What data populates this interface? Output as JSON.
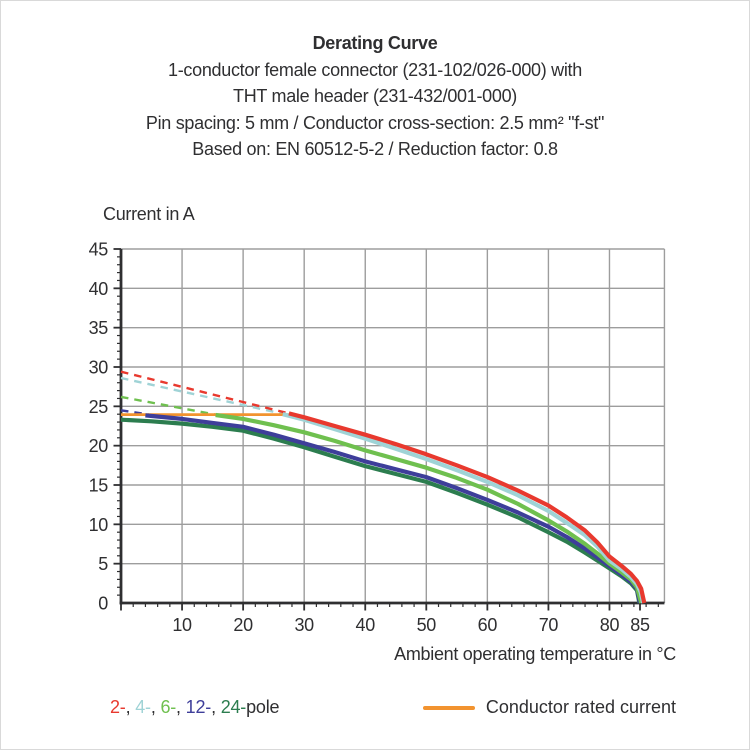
{
  "title": {
    "line1": "Derating Curve",
    "line2": "1-conductor female connector (231-102/026-000) with",
    "line3": "THT male header (231-432/001-000)",
    "line4": "Pin spacing: 5 mm / Conductor cross-section: 2.5 mm² \"f-st\"",
    "line5": "Based on: EN 60512-5-2 / Reduction factor: 0.8"
  },
  "chart_data": {
    "type": "line",
    "title": "Derating Curve",
    "ylabel": "Current in A",
    "xlabel": "Ambient operating temperature in °C",
    "xlim": [
      0,
      89
    ],
    "ylim": [
      0,
      45
    ],
    "grid": true,
    "colors": {
      "grid": "#9d9d9d",
      "axis": "#2f2f31",
      "tick_text": "#2f2f31",
      "pole2": "#e8392e",
      "pole4": "#9fd3d6",
      "pole6": "#6fc04f",
      "pole12": "#3e3e9a",
      "pole24": "#2c7d4f",
      "rated": "#f2932f"
    },
    "x_gridlines": [
      10,
      20,
      30,
      40,
      50,
      60,
      70,
      80
    ],
    "x_major_ticks": [
      0,
      10,
      20,
      30,
      40,
      50,
      60,
      70,
      80,
      85
    ],
    "x_tick_labels": [
      "10",
      "20",
      "30",
      "40",
      "50",
      "60",
      "70",
      "80",
      "85"
    ],
    "x_tick_label_values": [
      10,
      20,
      30,
      40,
      50,
      60,
      70,
      80,
      85
    ],
    "x_minor_step": 2,
    "y_major_ticks": [
      0,
      5,
      10,
      15,
      20,
      25,
      30,
      35,
      40,
      45
    ],
    "y_tick_labels": [
      "0",
      "5",
      "10",
      "15",
      "20",
      "25",
      "30",
      "35",
      "40",
      "45"
    ],
    "y_minor_step": 1,
    "series": [
      {
        "name": "12-pole above rated current",
        "color": "#3e3e9a",
        "style": "dashed",
        "width": 2.4,
        "points": [
          [
            0,
            24.5
          ],
          [
            5,
            23.9
          ]
        ]
      },
      {
        "name": "6-pole above rated current",
        "color": "#6fc04f",
        "style": "dashed",
        "width": 2.4,
        "points": [
          [
            0,
            26.2
          ],
          [
            15.5,
            23.95
          ]
        ]
      },
      {
        "name": "4-pole above rated current",
        "color": "#9fd3d6",
        "style": "dashed",
        "width": 2.4,
        "points": [
          [
            0,
            28.6
          ],
          [
            26.5,
            24.05
          ]
        ]
      },
      {
        "name": "2-pole above rated current",
        "color": "#e8392e",
        "style": "dashed",
        "width": 2.4,
        "points": [
          [
            0,
            29.4
          ],
          [
            27.5,
            24.1
          ]
        ]
      },
      {
        "name": "Conductor rated current",
        "color": "#f2932f",
        "style": "solid",
        "width": 2.8,
        "points": [
          [
            0,
            23.95
          ],
          [
            28.5,
            23.95
          ]
        ]
      },
      {
        "name": "24-pole",
        "color": "#2c7d4f",
        "style": "solid",
        "width": 4.2,
        "points": [
          [
            0,
            23.3
          ],
          [
            5,
            23.1
          ],
          [
            10,
            22.8
          ],
          [
            15,
            22.4
          ],
          [
            20,
            21.9
          ],
          [
            25,
            20.9
          ],
          [
            30,
            19.8
          ],
          [
            35,
            18.6
          ],
          [
            40,
            17.4
          ],
          [
            45,
            16.4
          ],
          [
            50,
            15.4
          ],
          [
            55,
            14.0
          ],
          [
            60,
            12.5
          ],
          [
            65,
            10.9
          ],
          [
            70,
            9.0
          ],
          [
            73,
            7.8
          ],
          [
            76,
            6.4
          ],
          [
            78,
            5.4
          ],
          [
            80,
            4.4
          ],
          [
            82,
            3.4
          ],
          [
            83.5,
            2.5
          ],
          [
            84.5,
            1.6
          ],
          [
            84.9,
            0
          ]
        ]
      },
      {
        "name": "12-pole",
        "color": "#3e3e9a",
        "style": "solid",
        "width": 4.2,
        "points": [
          [
            4,
            23.85
          ],
          [
            10,
            23.4
          ],
          [
            15,
            22.9
          ],
          [
            20,
            22.4
          ],
          [
            25,
            21.4
          ],
          [
            30,
            20.3
          ],
          [
            35,
            19.2
          ],
          [
            40,
            18.0
          ],
          [
            45,
            17.0
          ],
          [
            50,
            16.0
          ],
          [
            55,
            14.6
          ],
          [
            60,
            13.1
          ],
          [
            65,
            11.5
          ],
          [
            70,
            9.7
          ],
          [
            73,
            8.4
          ],
          [
            76,
            6.9
          ],
          [
            78,
            5.8
          ],
          [
            80,
            4.7
          ],
          [
            82,
            3.6
          ],
          [
            83.5,
            2.7
          ],
          [
            84.5,
            1.8
          ],
          [
            85,
            0
          ]
        ]
      },
      {
        "name": "6-pole",
        "color": "#6fc04f",
        "style": "solid",
        "width": 4.2,
        "points": [
          [
            15.5,
            23.9
          ],
          [
            20,
            23.4
          ],
          [
            25,
            22.6
          ],
          [
            30,
            21.7
          ],
          [
            35,
            20.6
          ],
          [
            40,
            19.4
          ],
          [
            45,
            18.3
          ],
          [
            50,
            17.2
          ],
          [
            55,
            15.9
          ],
          [
            60,
            14.4
          ],
          [
            65,
            12.6
          ],
          [
            70,
            10.5
          ],
          [
            73,
            9.1
          ],
          [
            76,
            7.5
          ],
          [
            78,
            6.3
          ],
          [
            80,
            5.0
          ],
          [
            82,
            3.9
          ],
          [
            83.5,
            3.0
          ],
          [
            84.5,
            2.0
          ],
          [
            85.2,
            0
          ]
        ]
      },
      {
        "name": "4-pole",
        "color": "#9fd3d6",
        "style": "solid",
        "width": 4.2,
        "points": [
          [
            26.5,
            24.0
          ],
          [
            30,
            23.3
          ],
          [
            35,
            22.1
          ],
          [
            40,
            20.9
          ],
          [
            45,
            19.6
          ],
          [
            50,
            18.3
          ],
          [
            55,
            16.9
          ],
          [
            60,
            15.4
          ],
          [
            65,
            13.7
          ],
          [
            70,
            11.7
          ],
          [
            73,
            10.2
          ],
          [
            76,
            8.6
          ],
          [
            78,
            7.2
          ],
          [
            80,
            5.4
          ],
          [
            82,
            4.3
          ],
          [
            83.5,
            3.3
          ],
          [
            84.5,
            2.4
          ],
          [
            85.1,
            1.4
          ],
          [
            85.5,
            0
          ]
        ]
      },
      {
        "name": "2-pole",
        "color": "#e8392e",
        "style": "solid",
        "width": 4.2,
        "points": [
          [
            27.5,
            24.1
          ],
          [
            30,
            23.6
          ],
          [
            35,
            22.5
          ],
          [
            40,
            21.4
          ],
          [
            45,
            20.2
          ],
          [
            50,
            18.9
          ],
          [
            55,
            17.5
          ],
          [
            60,
            16.0
          ],
          [
            65,
            14.3
          ],
          [
            70,
            12.4
          ],
          [
            73,
            10.9
          ],
          [
            76,
            9.2
          ],
          [
            78,
            7.7
          ],
          [
            80,
            5.9
          ],
          [
            82,
            4.7
          ],
          [
            83.5,
            3.7
          ],
          [
            84.5,
            2.8
          ],
          [
            85.2,
            1.8
          ],
          [
            85.7,
            0
          ]
        ]
      }
    ],
    "legend_position": "bottom"
  },
  "legend": {
    "pole_entries": [
      {
        "label": "2-",
        "color": "#e8392e"
      },
      {
        "label": ", ",
        "color": "#2f2f31"
      },
      {
        "label": "4-",
        "color": "#9fd3d6"
      },
      {
        "label": ", ",
        "color": "#2f2f31"
      },
      {
        "label": "6-",
        "color": "#6fc04f"
      },
      {
        "label": ", ",
        "color": "#2f2f31"
      },
      {
        "label": "12-",
        "color": "#3e3e9a"
      },
      {
        "label": ", ",
        "color": "#2f2f31"
      },
      {
        "label": "24-",
        "color": "#2c7d4f"
      },
      {
        "label": "pole",
        "color": "#2f2f31"
      }
    ],
    "rated_current_label": "Conductor rated current"
  }
}
